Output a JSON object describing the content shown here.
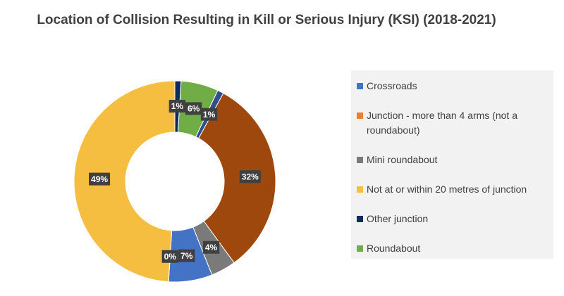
{
  "chart_data": {
    "type": "doughnut",
    "title": "Location of Collision Resulting in Kill or Serious Injury (KSI) (2018-2021)",
    "categories": [
      "Crossroads",
      "Junction - more than 4 arms (not a roundabout)",
      "Mini roundabout",
      "Not at or within 20 metres of junction",
      "Other junction",
      "Roundabout",
      null,
      null
    ],
    "values": [
      7,
      0,
      4,
      49,
      1,
      6,
      1,
      32
    ],
    "value_labels": [
      "7%",
      "0%",
      "4%",
      "49%",
      "1%",
      "6%",
      "1%",
      "32%"
    ],
    "colors": [
      "#4472c4",
      "#ed7d31",
      "#7a7a7a",
      "#f5be41",
      "#0f2a5e",
      "#70ad47",
      "#2f4f8f",
      "#9e480e"
    ],
    "legend": "right"
  }
}
